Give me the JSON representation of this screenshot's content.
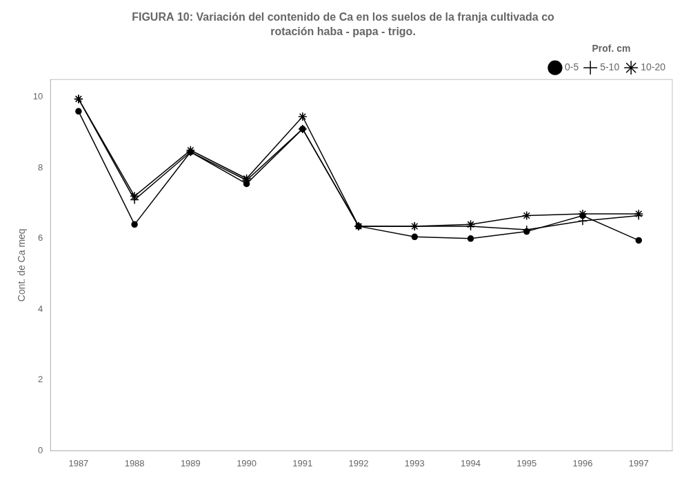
{
  "chart_data": {
    "type": "line",
    "title": "FIGURA 10: Variación del contenido de Ca en los suelos de la franja cultivada co",
    "subtitle": "rotación haba - papa - trigo.",
    "y_label": "Cont. de Ca meq",
    "x": [
      1987,
      1988,
      1989,
      1990,
      1991,
      1992,
      1993,
      1994,
      1995,
      1996,
      1997
    ],
    "series": [
      {
        "name": "0-5",
        "color": "#000000",
        "marker": "circle",
        "values": [
          9.6,
          6.4,
          8.45,
          7.55,
          9.1,
          6.35,
          6.05,
          6.0,
          6.2,
          6.65,
          5.95
        ]
      },
      {
        "name": "5-10",
        "color": "#000000",
        "marker": "cross",
        "values": [
          9.95,
          7.1,
          8.45,
          7.65,
          9.1,
          6.35,
          6.35,
          6.35,
          6.25,
          6.5,
          6.65
        ]
      },
      {
        "name": "10-20",
        "color": "#000000",
        "marker": "star",
        "values": [
          9.95,
          7.2,
          8.5,
          7.7,
          9.45,
          6.35,
          6.35,
          6.4,
          6.65,
          6.7,
          6.7
        ]
      }
    ],
    "legend_title": "Prof. cm",
    "legend": "upper right",
    "xlim": [
      1986.5,
      1997.6
    ],
    "xticks": [
      1987,
      1988,
      1989,
      1990,
      1991,
      1992,
      1993,
      1994,
      1995,
      1996,
      1997
    ],
    "ylim": [
      0,
      10.5
    ],
    "yticks": [
      0,
      2,
      4,
      6,
      8,
      10
    ],
    "grid": false
  }
}
